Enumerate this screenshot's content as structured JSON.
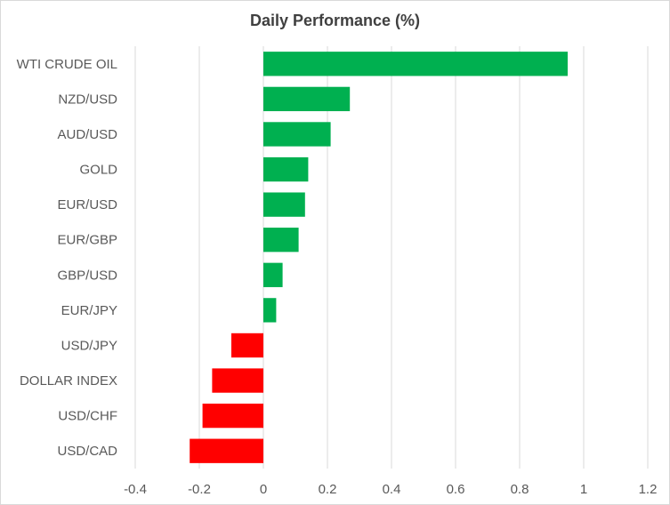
{
  "chart_data": {
    "type": "bar",
    "orientation": "horizontal",
    "title": "Daily Performance  (%)",
    "categories": [
      "WTI CRUDE OIL",
      "NZD/USD",
      "AUD/USD",
      "GOLD",
      "EUR/USD",
      "EUR/GBP",
      "GBP/USD",
      "EUR/JPY",
      "USD/JPY",
      "DOLLAR INDEX",
      "USD/CHF",
      "USD/CAD"
    ],
    "values": [
      0.95,
      0.27,
      0.21,
      0.14,
      0.13,
      0.11,
      0.06,
      0.04,
      -0.1,
      -0.16,
      -0.19,
      -0.23
    ],
    "xlim": [
      -0.4,
      1.2
    ],
    "xticks": [
      "-0.4",
      "-0.2",
      "0",
      "0.2",
      "0.4",
      "0.6",
      "0.8",
      "1",
      "1.2"
    ],
    "xtick_values": [
      -0.4,
      -0.2,
      0,
      0.2,
      0.4,
      0.6,
      0.8,
      1.0,
      1.2
    ],
    "grid": "vertical",
    "legend": "none",
    "colors": {
      "positive": "#00b050",
      "negative": "#ff0000",
      "grid": "#d9d9d9",
      "text": "#595959",
      "title": "#404040"
    }
  }
}
